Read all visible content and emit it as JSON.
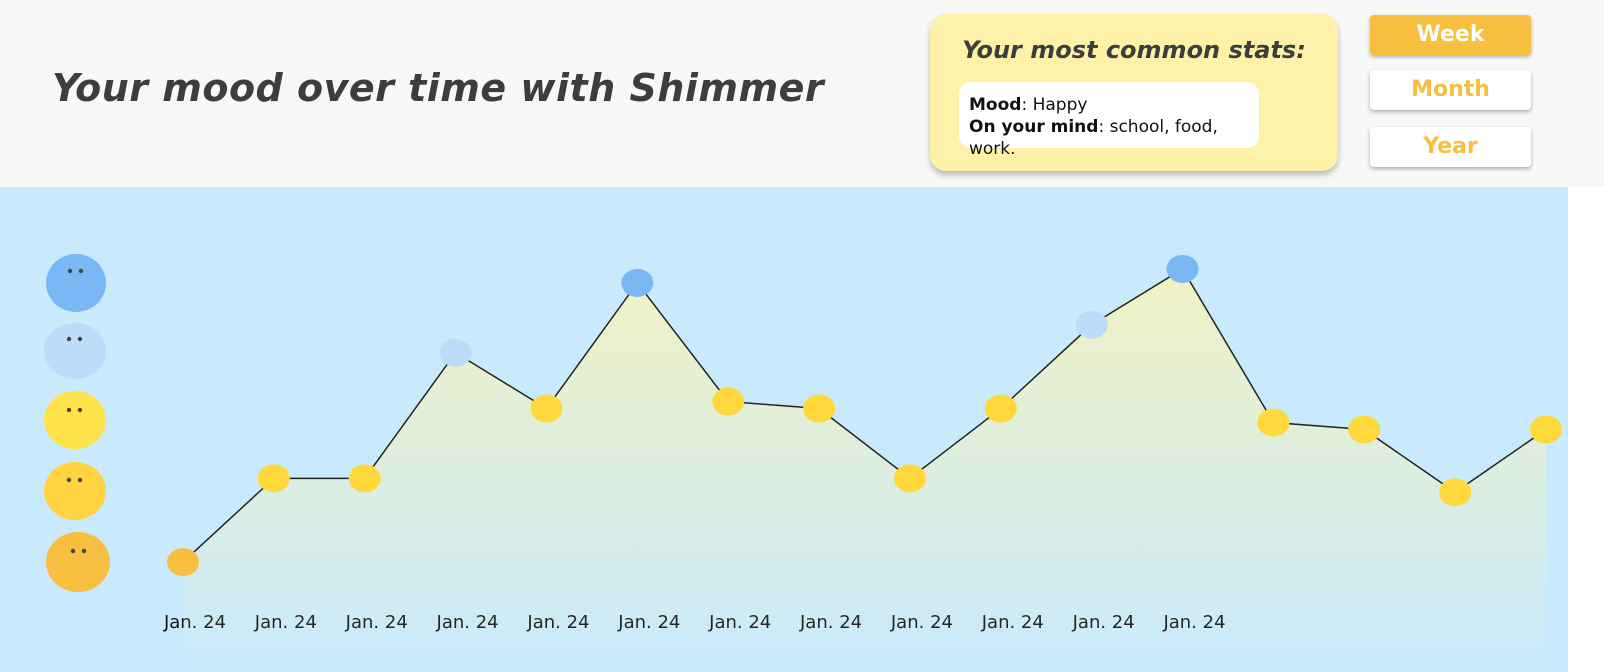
{
  "header": {
    "title": "Your mood over time with Shimmer"
  },
  "stats": {
    "title": "Your most common stats:",
    "mood_key": "Mood",
    "mood_value": ": Happy",
    "mind_key": "On your mind",
    "mind_value": ": school, food, work."
  },
  "buttons": [
    "Week",
    "Month",
    "Year"
  ],
  "chart_data": {
    "type": "line",
    "categories": [
      "Jan. 24",
      "Jan. 24",
      "Jan. 24",
      "Jan. 24",
      "Jan. 24",
      "Jan. 24",
      "Jan. 24",
      "Jan. 24",
      "Jan. 24",
      "Jan. 24",
      "Jan. 24",
      "Jan. 24",
      null,
      null,
      null,
      null
    ],
    "series": [
      {
        "values": [
          1.0,
          2.2,
          2.2,
          4.0,
          3.2,
          5.0,
          3.3,
          3.2,
          2.2,
          3.2,
          4.4,
          5.2,
          3.0,
          2.9,
          2.0,
          2.9
        ],
        "colors": [
          "#f7be3f",
          "#ffd83b",
          "#ffd83b",
          "#bcdcfa",
          "#ffd83b",
          "#7ab8f5",
          "#ffd83b",
          "#ffd83b",
          "#ffd83b",
          "#ffd83b",
          "#bcdcfa",
          "#7ab8f5",
          "#ffd83b",
          "#ffd83b",
          "#ffd83b",
          "#ffd83b"
        ],
        "color": "#222222"
      }
    ],
    "ylim": [
      0.5,
      5.5
    ]
  }
}
